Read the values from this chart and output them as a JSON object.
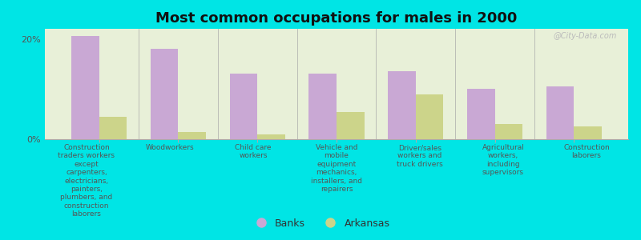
{
  "title": "Most common occupations for males in 2000",
  "categories": [
    "Construction\ntraders workers\nexcept\ncarpenters,\nelectricians,\npainters,\nplumbers, and\nconstruction\nlaborers",
    "Woodworkers",
    "Child care\nworkers",
    "Vehicle and\nmobile\nequipment\nmechanics,\ninstallers, and\nrepairers",
    "Driver/sales\nworkers and\ntruck drivers",
    "Agricultural\nworkers,\nincluding\nsupervisors",
    "Construction\nlaborers"
  ],
  "banks_values": [
    20.5,
    18.0,
    13.0,
    13.0,
    13.5,
    10.0,
    10.5
  ],
  "arkansas_values": [
    4.5,
    1.5,
    1.0,
    5.5,
    9.0,
    3.0,
    2.5
  ],
  "banks_color": "#c9a8d4",
  "arkansas_color": "#ccd48a",
  "background_color": "#00e5e5",
  "plot_bg_color": "#e8f0d8",
  "ylim": [
    0,
    22
  ],
  "yticks": [
    0,
    20
  ],
  "ytick_labels": [
    "0%",
    "20%"
  ],
  "legend_labels": [
    "Banks",
    "Arkansas"
  ],
  "bar_width": 0.35,
  "watermark": "@City-Data.com"
}
